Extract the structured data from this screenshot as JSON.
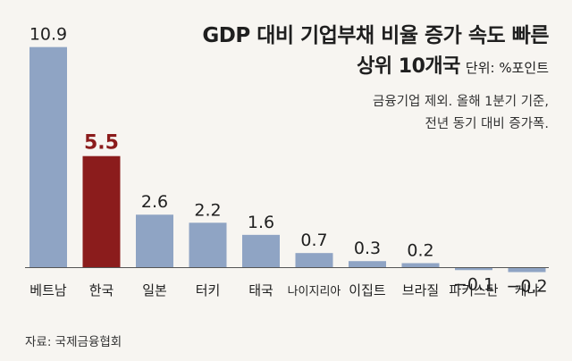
{
  "chart_data": {
    "type": "bar",
    "title": "GDP 대비 기업부채 비율 증가 속도 빠른",
    "title_line2": "상위 10개국",
    "unit_label": "단위: %포인트",
    "notes": [
      "금융기업 제외. 올해 1분기 기준,",
      "전년 동기 대비 증가폭."
    ],
    "source": "자료: 국제금융협회",
    "categories": [
      "베트남",
      "한국",
      "일본",
      "터키",
      "태국",
      "나이지리아",
      "이집트",
      "브라질",
      "파키스탄",
      "케냐"
    ],
    "values": [
      10.9,
      5.5,
      2.6,
      2.2,
      1.6,
      0.7,
      0.3,
      0.2,
      -0.1,
      -0.2
    ],
    "value_labels": [
      "10.9",
      "5.5",
      "2.6",
      "2.2",
      "1.6",
      "0.7",
      "0.3",
      "0.2",
      "−0.1",
      "−0.2"
    ],
    "highlight_index": 1,
    "colors": {
      "bar": "#8fa4c4",
      "highlight": "#8b1c1c",
      "highlight_label": "#8b1c1c",
      "label": "#1f1f1f",
      "axis": "#555555",
      "background": "#f7f5f1"
    }
  }
}
